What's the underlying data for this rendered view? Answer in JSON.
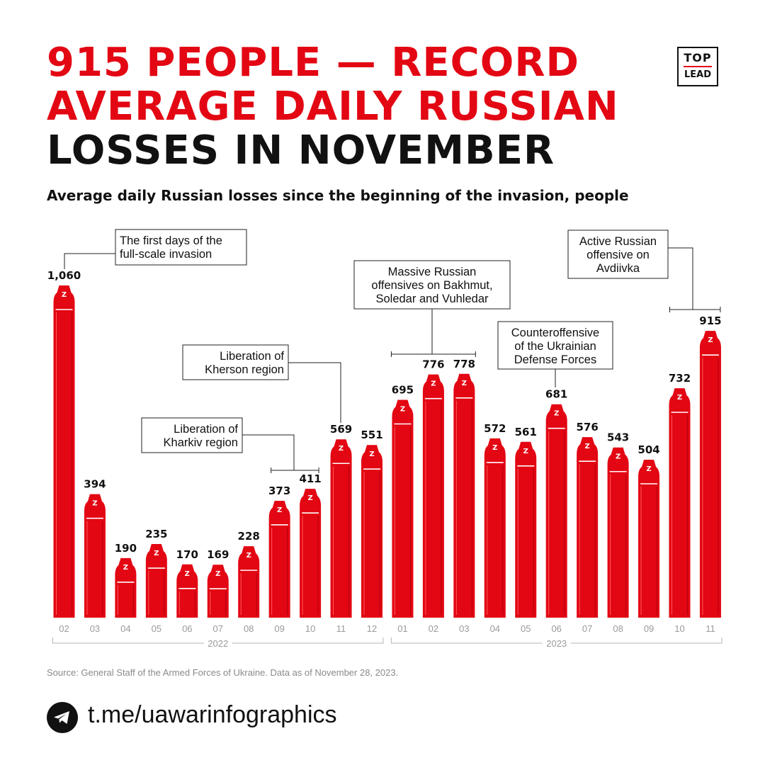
{
  "header": {
    "title_line1": "915 PEOPLE — RECORD",
    "title_line2": "AVERAGE DAILY RUSSIAN",
    "title_line3": "LOSSES IN NOVEMBER",
    "subtitle": "Average daily Russian losses since the beginning of the invasion, people"
  },
  "logo": {
    "top": "TOP",
    "bottom": "LEAD"
  },
  "colors": {
    "accent": "#e30613",
    "text": "#111111",
    "muted": "#8a8a8a"
  },
  "chart_data": {
    "type": "bar",
    "title": "Average daily Russian losses since the beginning of the invasion, people",
    "categories": [
      "02",
      "03",
      "04",
      "05",
      "06",
      "07",
      "08",
      "09",
      "10",
      "11",
      "12",
      "01",
      "02",
      "03",
      "04",
      "05",
      "06",
      "07",
      "08",
      "09",
      "10",
      "11"
    ],
    "years": [
      {
        "label": "2022",
        "from": 0,
        "to": 10
      },
      {
        "label": "2023",
        "from": 11,
        "to": 21
      }
    ],
    "values": [
      1060,
      394,
      190,
      235,
      170,
      169,
      228,
      373,
      411,
      569,
      551,
      695,
      776,
      778,
      572,
      561,
      681,
      576,
      543,
      504,
      732,
      915
    ],
    "value_labels": [
      "1,060",
      "394",
      "190",
      "235",
      "170",
      "169",
      "228",
      "373",
      "411",
      "569",
      "551",
      "695",
      "776",
      "778",
      "572",
      "561",
      "681",
      "576",
      "543",
      "504",
      "732",
      "915"
    ],
    "bar_mark": "Z",
    "ylim": [
      0,
      1060
    ],
    "grid": false,
    "annotations": [
      {
        "lines": [
          "The first days of the",
          "full-scale invasion"
        ],
        "from": 0,
        "to": 0
      },
      {
        "lines": [
          "Liberation of",
          "Kharkiv region"
        ],
        "from": 7,
        "to": 8
      },
      {
        "lines": [
          "Liberation of",
          "Kherson region"
        ],
        "from": 9,
        "to": 9
      },
      {
        "lines": [
          "Massive Russian",
          "offensives on Bakhmut,",
          "Soledar and Vuhledar"
        ],
        "from": 11,
        "to": 13
      },
      {
        "lines": [
          "Counteroffensive",
          "of the Ukrainian",
          "Defense Forces"
        ],
        "from": 16,
        "to": 16
      },
      {
        "lines": [
          "Active Russian",
          "offensive on",
          "Avdiivka"
        ],
        "from": 20,
        "to": 21
      }
    ]
  },
  "footer": {
    "source": "Source: General Staff of the Armed Forces of Ukraine. Data as of November 28, 2023.",
    "channel": "t.me/uawarinfographics",
    "channel_icon": "telegram-icon"
  }
}
